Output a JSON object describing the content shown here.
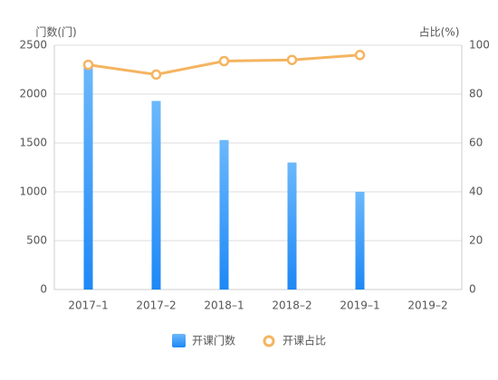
{
  "chart_data": {
    "type": "bar",
    "y_label": "门数(门)",
    "y2_label": "占比(%)",
    "categories": [
      "2017–1",
      "2017–2",
      "2018–1",
      "2018–2",
      "2019–1",
      "2019–2"
    ],
    "series": [
      {
        "name": "开课门数",
        "type": "bar",
        "color": "#2c8ef8",
        "values": [
          2300,
          1930,
          1530,
          1300,
          1000,
          null
        ]
      },
      {
        "name": "开课占比",
        "type": "line",
        "axis": "y2",
        "color": "#f5b460",
        "values": [
          92,
          88,
          93.5,
          94,
          96,
          null
        ]
      }
    ],
    "ylim": [
      0,
      2500
    ],
    "yticks": [
      0,
      500,
      1000,
      1500,
      2000,
      2500
    ],
    "y2lim": [
      0,
      100
    ],
    "y2ticks": [
      0,
      20,
      40,
      60,
      80,
      100
    ],
    "grid": true,
    "legend": "bottom"
  }
}
